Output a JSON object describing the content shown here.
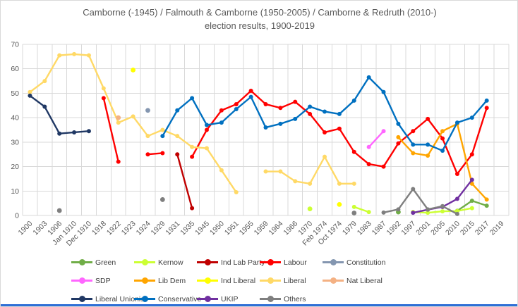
{
  "chart_data": {
    "type": "line",
    "title": "Camborne (-1945) / Falmouth & Camborne (1950-2005) / Camborne & Redruth (2010-)",
    "subtitle": "election results, 1900-2019",
    "xlabel": "",
    "ylabel": "",
    "ylim": [
      0,
      70
    ],
    "ytick_step": 10,
    "grid": true,
    "legend_position": "bottom",
    "grid_color": "#d9d9d9",
    "text_color": "#595959",
    "categories": [
      "1900",
      "1903",
      "1906",
      "Jan 1910",
      "Dec 1910",
      "1918",
      "1922",
      "1923",
      "1924",
      "1929",
      "1931",
      "1935",
      "1945",
      "1950",
      "1951",
      "1955",
      "1959",
      "1964",
      "1966",
      "1970",
      "Feb 1974",
      "Oct 1974",
      "1979",
      "1983",
      "1987",
      "1992",
      "1997",
      "2001",
      "2005",
      "2010",
      "2015",
      "2017",
      "2019"
    ],
    "series": [
      {
        "name": "Green",
        "color": "#70ad47",
        "values": [
          null,
          null,
          null,
          null,
          null,
          null,
          null,
          null,
          null,
          null,
          null,
          null,
          null,
          null,
          null,
          null,
          null,
          null,
          null,
          null,
          null,
          null,
          null,
          null,
          null,
          1.4,
          null,
          null,
          null,
          1.9,
          6,
          4,
          null
        ]
      },
      {
        "name": "Kernow",
        "color": "#ccff33",
        "values": [
          null,
          null,
          null,
          null,
          null,
          null,
          null,
          null,
          null,
          null,
          null,
          null,
          null,
          null,
          null,
          null,
          null,
          null,
          null,
          2.7,
          null,
          null,
          3.5,
          1.4,
          null,
          null,
          1.4,
          1.1,
          1.7,
          1.8,
          3,
          null,
          null
        ]
      },
      {
        "name": "Ind Lab Party",
        "color": "#c00000",
        "values": [
          null,
          null,
          null,
          null,
          null,
          null,
          null,
          null,
          null,
          null,
          25,
          3,
          null,
          null,
          null,
          null,
          null,
          null,
          null,
          null,
          null,
          null,
          null,
          null,
          null,
          null,
          null,
          null,
          null,
          null,
          null,
          null,
          null
        ]
      },
      {
        "name": "Labour",
        "color": "#ff0000",
        "values": [
          null,
          null,
          null,
          null,
          null,
          48,
          22,
          null,
          25,
          25.5,
          null,
          24,
          35,
          43,
          45.5,
          51,
          45.5,
          44,
          46.5,
          41.5,
          34,
          35.5,
          26,
          21,
          20,
          29.5,
          34.5,
          39.5,
          31.5,
          17,
          25,
          44,
          null
        ]
      },
      {
        "name": "Constitution",
        "color": "#8496b0",
        "values": [
          null,
          null,
          null,
          null,
          null,
          null,
          null,
          null,
          43,
          null,
          null,
          null,
          null,
          null,
          null,
          null,
          null,
          null,
          null,
          null,
          null,
          null,
          null,
          null,
          null,
          null,
          null,
          null,
          null,
          null,
          null,
          null,
          null
        ]
      },
      {
        "name": "SDP",
        "color": "#ff66ff",
        "values": [
          null,
          null,
          null,
          null,
          null,
          null,
          null,
          null,
          null,
          null,
          null,
          null,
          null,
          null,
          null,
          null,
          null,
          null,
          null,
          null,
          null,
          null,
          null,
          28,
          34.5,
          null,
          null,
          null,
          null,
          null,
          null,
          null,
          null
        ]
      },
      {
        "name": "Lib Dem",
        "color": "#ffa500",
        "values": [
          null,
          null,
          null,
          null,
          null,
          null,
          null,
          null,
          null,
          null,
          null,
          null,
          null,
          null,
          null,
          null,
          null,
          null,
          null,
          null,
          null,
          null,
          null,
          null,
          null,
          32,
          25.5,
          24.5,
          34.5,
          37.5,
          13,
          6.5,
          null
        ]
      },
      {
        "name": "Ind Liberal",
        "color": "#ffff00",
        "values": [
          null,
          null,
          null,
          null,
          null,
          null,
          null,
          59.5,
          null,
          null,
          null,
          null,
          null,
          null,
          null,
          null,
          null,
          null,
          null,
          null,
          null,
          4.5,
          null,
          null,
          null,
          null,
          null,
          null,
          null,
          null,
          null,
          null,
          null
        ]
      },
      {
        "name": "Liberal",
        "color": "#ffd966",
        "values": [
          50.5,
          55,
          65.5,
          66,
          65.5,
          52,
          38,
          40.5,
          32.5,
          35,
          32.5,
          28,
          27.5,
          18.5,
          9.5,
          null,
          18,
          18,
          14,
          13,
          24,
          13,
          13,
          null,
          null,
          null,
          null,
          null,
          null,
          null,
          null,
          null,
          null
        ]
      },
      {
        "name": "Nat Liberal",
        "color": "#f4b183",
        "values": [
          null,
          null,
          null,
          null,
          null,
          null,
          40,
          null,
          null,
          null,
          null,
          null,
          null,
          null,
          null,
          null,
          null,
          null,
          null,
          null,
          null,
          null,
          null,
          null,
          null,
          null,
          null,
          null,
          null,
          null,
          null,
          null,
          null
        ]
      },
      {
        "name": "Liberal Unionist",
        "color": "#203864",
        "values": [
          49,
          44.5,
          33.5,
          34,
          34.5,
          null,
          null,
          null,
          null,
          null,
          null,
          null,
          null,
          null,
          null,
          null,
          null,
          null,
          null,
          null,
          null,
          null,
          null,
          null,
          null,
          null,
          null,
          null,
          null,
          null,
          null,
          null,
          null
        ]
      },
      {
        "name": "Conservative",
        "color": "#0070c0",
        "values": [
          null,
          null,
          null,
          null,
          null,
          null,
          null,
          null,
          null,
          32.5,
          43,
          48,
          37,
          38,
          43.5,
          48.5,
          36,
          37.5,
          39.5,
          44.5,
          42.5,
          41.5,
          47,
          56.5,
          50.5,
          37.5,
          29,
          29,
          26.5,
          38,
          40,
          47,
          null
        ]
      },
      {
        "name": "UKIP",
        "color": "#7030a0",
        "values": [
          null,
          null,
          null,
          null,
          null,
          null,
          null,
          null,
          null,
          null,
          null,
          null,
          null,
          null,
          null,
          null,
          null,
          null,
          null,
          null,
          null,
          null,
          null,
          null,
          null,
          null,
          1.1,
          2.4,
          3.5,
          6.8,
          14.6,
          null,
          null
        ]
      },
      {
        "name": "Others",
        "color": "#7f7f7f",
        "values": [
          null,
          null,
          2,
          null,
          null,
          null,
          null,
          null,
          null,
          6.5,
          null,
          null,
          null,
          null,
          null,
          null,
          null,
          null,
          null,
          null,
          null,
          null,
          1,
          null,
          1.2,
          2.5,
          10.8,
          2.5,
          3.8,
          0.6,
          null,
          null,
          null
        ]
      }
    ]
  }
}
